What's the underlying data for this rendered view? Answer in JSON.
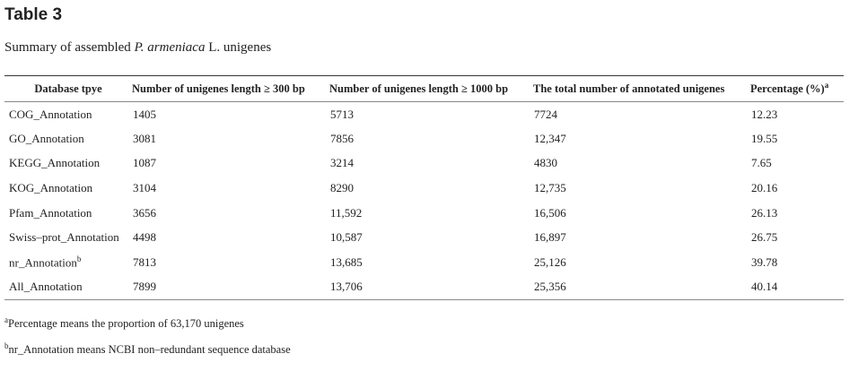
{
  "title": "Table 3",
  "caption": {
    "before": "Summary of assembled ",
    "italic": "P. armeniaca",
    "after": " L. unigenes"
  },
  "table": {
    "header": [
      "Database tpye",
      "Number of unigenes length ≥ 300 bp",
      "Number of unigenes length ≥ 1000 bp",
      "The total number of annotated unigenes",
      {
        "text": "Percentage (%)",
        "sup": "a"
      }
    ],
    "rows": [
      [
        "COG_Annotation",
        "1405",
        "5713",
        "7724",
        "12.23"
      ],
      [
        "GO_Annotation",
        "3081",
        "7856",
        "12,347",
        "19.55"
      ],
      [
        "KEGG_Annotation",
        "1087",
        "3214",
        "4830",
        "7.65"
      ],
      [
        "KOG_Annotation",
        "3104",
        "8290",
        "12,735",
        "20.16"
      ],
      [
        "Pfam_Annotation",
        "3656",
        "11,592",
        "16,506",
        "26.13"
      ],
      [
        "Swiss–prot_Annotation",
        "4498",
        "10,587",
        "16,897",
        "26.75"
      ],
      [
        {
          "text": "nr_Annotation",
          "sup": "b"
        },
        "7813",
        "13,685",
        "25,126",
        "39.78"
      ],
      [
        "All_Annotation",
        "7899",
        "13,706",
        "25,356",
        "40.14"
      ]
    ]
  },
  "footnotes": [
    {
      "mark": "a",
      "text": "Percentage means the proportion of 63,170 unigenes"
    },
    {
      "mark": "b",
      "text": "nr_Annotation means NCBI non–redundant sequence database"
    }
  ]
}
